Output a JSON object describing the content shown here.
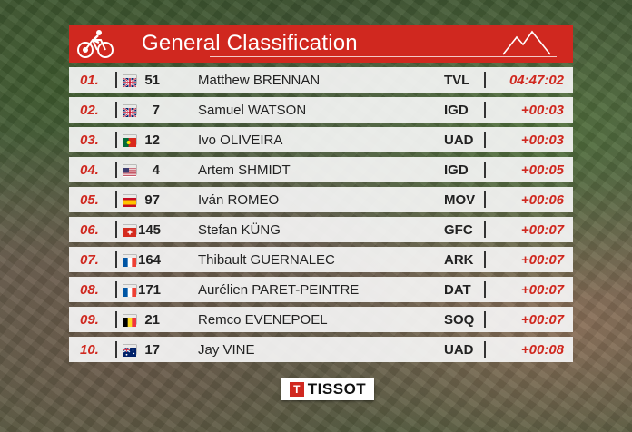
{
  "header": {
    "title": "General Classification"
  },
  "rows": [
    {
      "pos": "01.",
      "flag": "gb",
      "number": "51",
      "name": "Matthew BRENNAN",
      "team": "TVL",
      "time": "04:47:02"
    },
    {
      "pos": "02.",
      "flag": "gb",
      "number": "7",
      "name": "Samuel WATSON",
      "team": "IGD",
      "time": "+00:03"
    },
    {
      "pos": "03.",
      "flag": "pt",
      "number": "12",
      "name": "Ivo OLIVEIRA",
      "team": "UAD",
      "time": "+00:03"
    },
    {
      "pos": "04.",
      "flag": "us",
      "number": "4",
      "name": "Artem SHMIDT",
      "team": "IGD",
      "time": "+00:05"
    },
    {
      "pos": "05.",
      "flag": "es",
      "number": "97",
      "name": "Iván ROMEO",
      "team": "MOV",
      "time": "+00:06"
    },
    {
      "pos": "06.",
      "flag": "ch",
      "number": "145",
      "name": "Stefan KÜNG",
      "team": "GFC",
      "time": "+00:07"
    },
    {
      "pos": "07.",
      "flag": "fr",
      "number": "164",
      "name": "Thibault GUERNALEC",
      "team": "ARK",
      "time": "+00:07"
    },
    {
      "pos": "08.",
      "flag": "fr",
      "number": "171",
      "name": "Aurélien PARET-PEINTRE",
      "team": "DAT",
      "time": "+00:07"
    },
    {
      "pos": "09.",
      "flag": "be",
      "number": "21",
      "name": "Remco EVENEPOEL",
      "team": "SOQ",
      "time": "+00:07"
    },
    {
      "pos": "10.",
      "flag": "au",
      "number": "17",
      "name": "Jay VINE",
      "team": "UAD",
      "time": "+00:08"
    }
  ],
  "sponsor": {
    "mark": "T",
    "name": "TISSOT"
  },
  "colors": {
    "accent": "#d0281f",
    "row_bg": "#f6f6f6"
  },
  "icons": {
    "header_left": "cyclist-icon",
    "header_right": "mountain-icon"
  }
}
